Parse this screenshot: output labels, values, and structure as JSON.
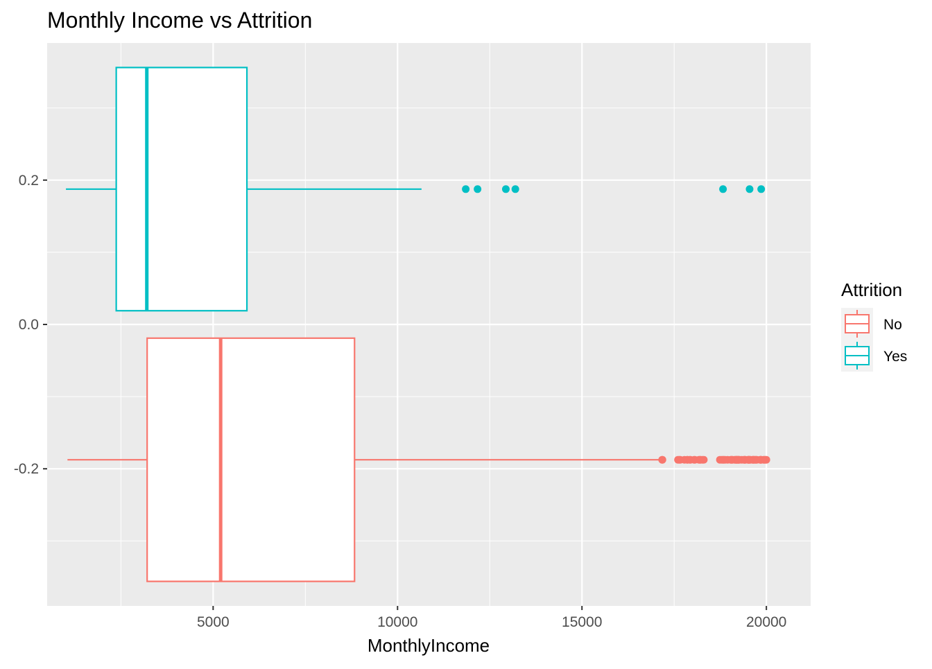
{
  "chart_data": {
    "type": "boxplot",
    "title": "Monthly Income vs Attrition",
    "xlabel": "MonthlyIncome",
    "ylabel": "",
    "xlim": [
      500,
      21200
    ],
    "ylim": [
      -0.39,
      0.39
    ],
    "x_ticks": [
      5000,
      10000,
      15000,
      20000
    ],
    "x_tick_labels": [
      "5000",
      "10000",
      "15000",
      "20000"
    ],
    "y_ticks": [
      -0.2,
      0.0,
      0.2
    ],
    "y_tick_labels": [
      "-0.2",
      "0.0",
      "0.2"
    ],
    "grid": true,
    "legend": {
      "title": "Attrition",
      "position": "right"
    },
    "series": [
      {
        "name": "No",
        "color": "#F8766D",
        "y_center": -0.1875,
        "y_box": [
          -0.356,
          -0.019
        ],
        "whisker_low": 1051,
        "q1": 3211,
        "median": 5204,
        "q3": 8834,
        "whisker_high": 17159,
        "outliers": [
          17174,
          17181,
          17603,
          17639,
          17665,
          17779,
          17856,
          17861,
          17924,
          17940,
          18041,
          18061,
          18172,
          18200,
          18213,
          18265,
          18303,
          18740,
          18789,
          18824,
          18844,
          18880,
          18947,
          19033,
          19045,
          19068,
          19081,
          19141,
          19161,
          19187,
          19189,
          19202,
          19232,
          19237,
          19246,
          19272,
          19331,
          19392,
          19406,
          19419,
          19431,
          19502,
          19513,
          19517,
          19537,
          19545,
          19566,
          19626,
          19636,
          19658,
          19665,
          19701,
          19717,
          19740,
          19833,
          19845,
          19847,
          19859,
          19926,
          19943,
          19973,
          19999
        ]
      },
      {
        "name": "Yes",
        "color": "#00BFC4",
        "y_center": 0.1875,
        "y_box": [
          0.019,
          0.356
        ],
        "whisker_low": 1009,
        "q1": 2373,
        "median": 3202,
        "q3": 5916,
        "whisker_high": 10650,
        "outliers": [
          11849,
          12169,
          12936,
          13194,
          18824,
          19545,
          19859
        ]
      }
    ]
  }
}
